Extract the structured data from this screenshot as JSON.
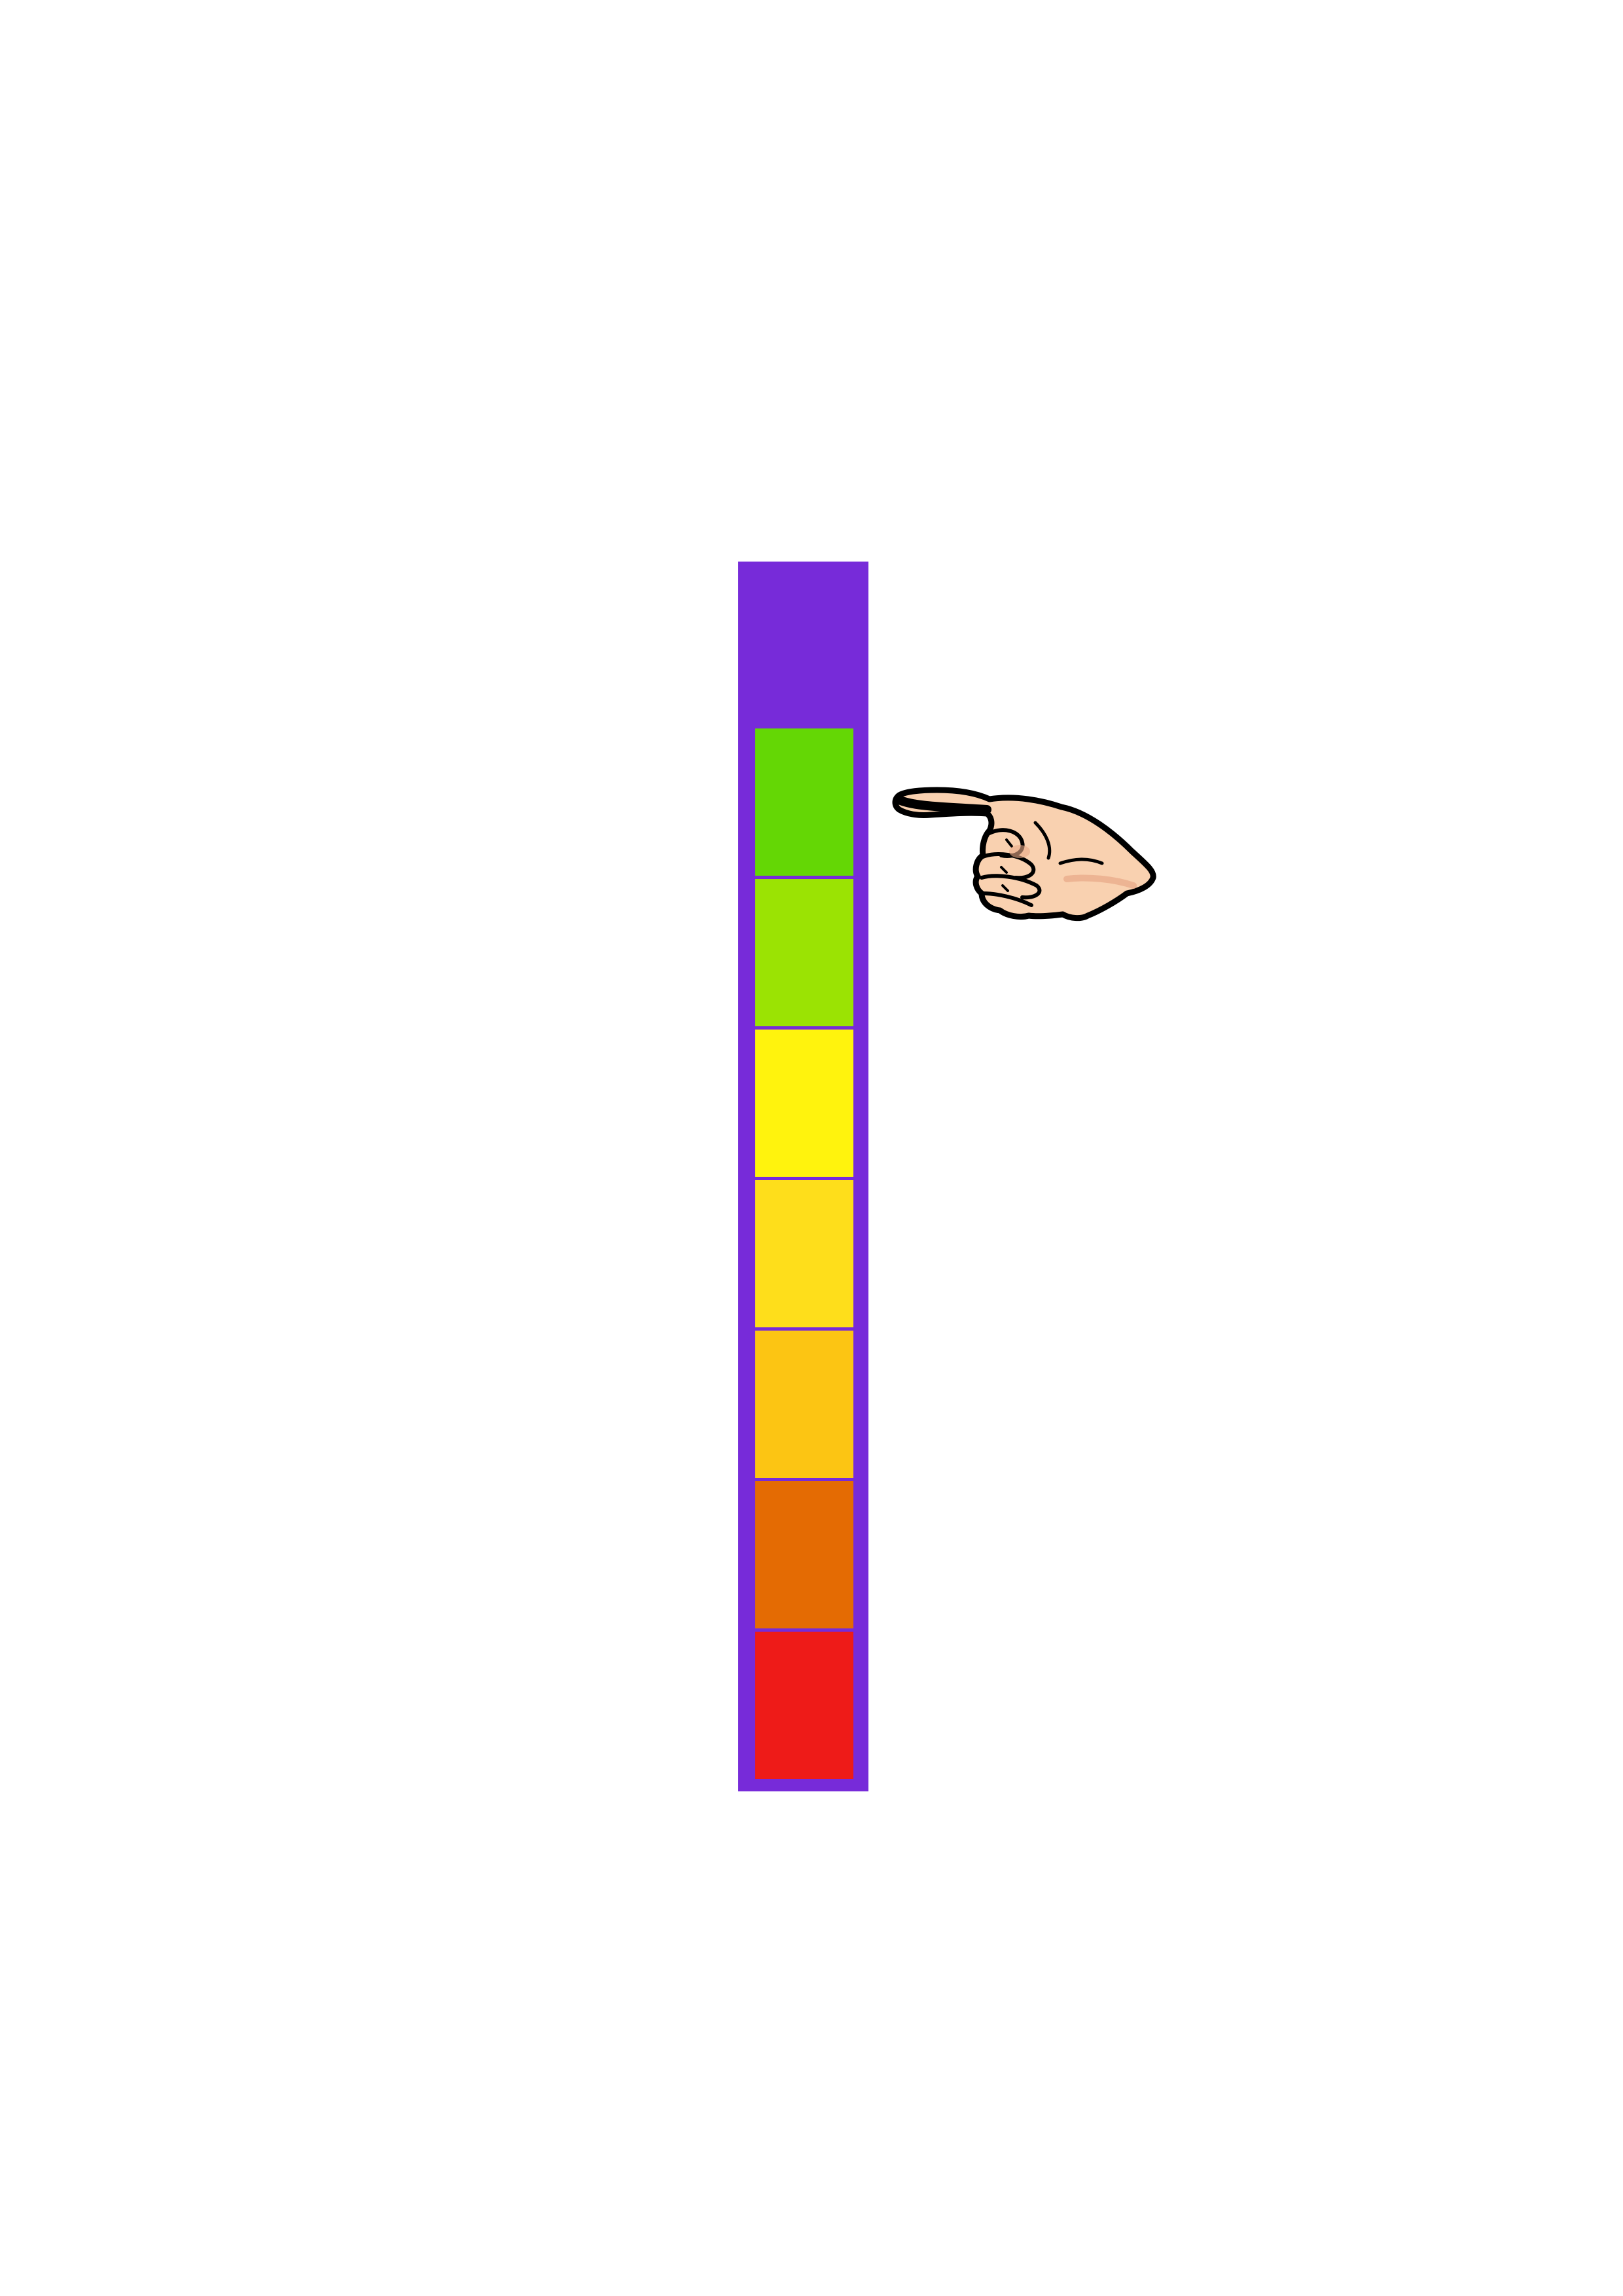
{
  "meter": {
    "frame_color": "#772bd9",
    "levels": [
      {
        "name": "dark-green",
        "color": "#64d705"
      },
      {
        "name": "light-green",
        "color": "#9be303"
      },
      {
        "name": "yellow",
        "color": "#fff30d"
      },
      {
        "name": "gold",
        "color": "#fede1b"
      },
      {
        "name": "amber",
        "color": "#fcc513"
      },
      {
        "name": "orange",
        "color": "#e46b03"
      },
      {
        "name": "red",
        "color": "#ee1b18"
      }
    ],
    "selected_level_index": 0
  },
  "pointer": {
    "icon": "pointing-hand-icon",
    "skin_color": "#f9d1b0",
    "outline_color": "#000000"
  }
}
